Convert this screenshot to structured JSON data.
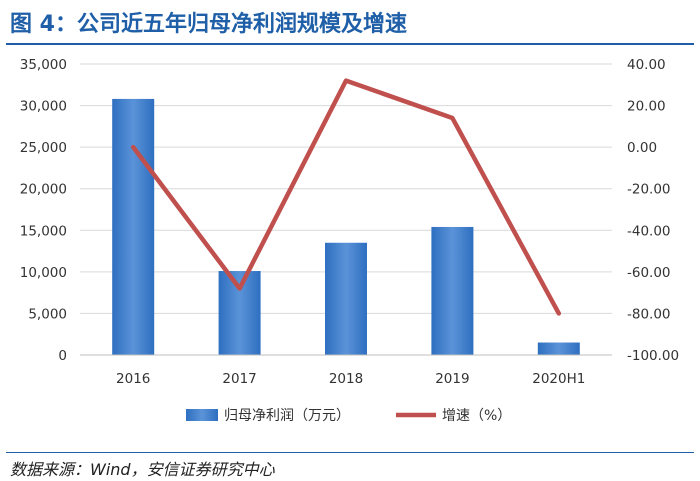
{
  "title": "图 4：公司近五年归母净利润规模及增速",
  "source": "数据来源：Wind，安信证券研究中心",
  "colors": {
    "bar": "#2e6fc0",
    "bar_light": "#5b93d8",
    "line": "#c0504d",
    "grid": "#d9d9d9",
    "title": "#1f5fa8"
  },
  "chart_data": {
    "type": "bar",
    "categories": [
      "2016",
      "2017",
      "2018",
      "2019",
      "2020H1"
    ],
    "series": [
      {
        "name": "归母净利润（万元）",
        "type": "bar",
        "axis": "left",
        "values": [
          30800,
          10100,
          13500,
          15400,
          1500
        ]
      },
      {
        "name": "增速（%）",
        "type": "line",
        "axis": "right",
        "values": [
          0.0,
          -68.0,
          32.0,
          14.0,
          -80.0
        ]
      }
    ],
    "left_axis": {
      "ylim": [
        0,
        35000
      ],
      "ticks": [
        "0",
        "5,000",
        "10,000",
        "15,000",
        "20,000",
        "25,000",
        "30,000",
        "35,000"
      ]
    },
    "right_axis": {
      "ylim": [
        -100,
        40
      ],
      "ticks": [
        "-100.00",
        "-80.00",
        "-60.00",
        "-40.00",
        "-20.00",
        "0.00",
        "20.00",
        "40.00"
      ]
    },
    "legend": "bottom",
    "grid": true
  }
}
